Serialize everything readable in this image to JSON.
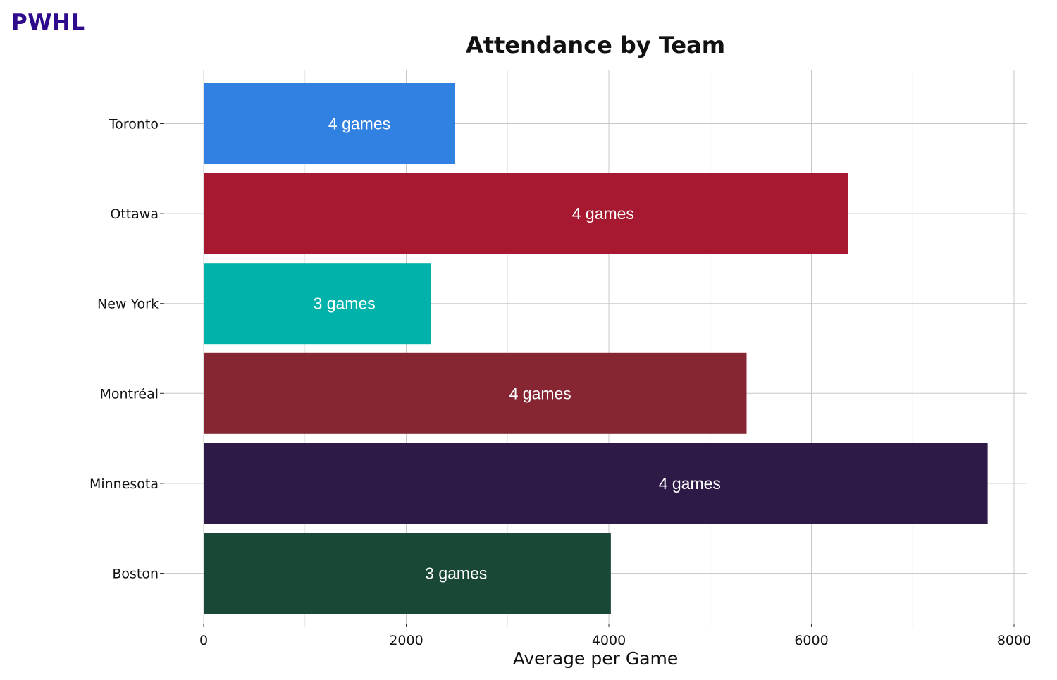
{
  "brand": {
    "text": "PWHL",
    "color": "#2e0a8c"
  },
  "chart_data": {
    "type": "bar",
    "orientation": "horizontal",
    "title": "Attendance by Team",
    "xlabel": "Average per Game",
    "ylabel": "",
    "xlim": [
      0,
      8000
    ],
    "xticks": [
      0,
      2000,
      4000,
      6000,
      8000
    ],
    "xticks_minor": [
      1000,
      3000,
      5000,
      7000
    ],
    "grid": true,
    "legend": "none",
    "categories": [
      "Toronto",
      "Ottawa",
      "New York",
      "Montréal",
      "Minnesota",
      "Boston"
    ],
    "values": [
      2480,
      6360,
      2240,
      5360,
      7740,
      4020
    ],
    "bar_labels": [
      "4 games",
      "4 games",
      "3 games",
      "4 games",
      "4 games",
      "3 games"
    ],
    "colors": [
      "#3181e3",
      "#a71930",
      "#00b2aa",
      "#862633",
      "#2e1a47",
      "#194836"
    ]
  }
}
